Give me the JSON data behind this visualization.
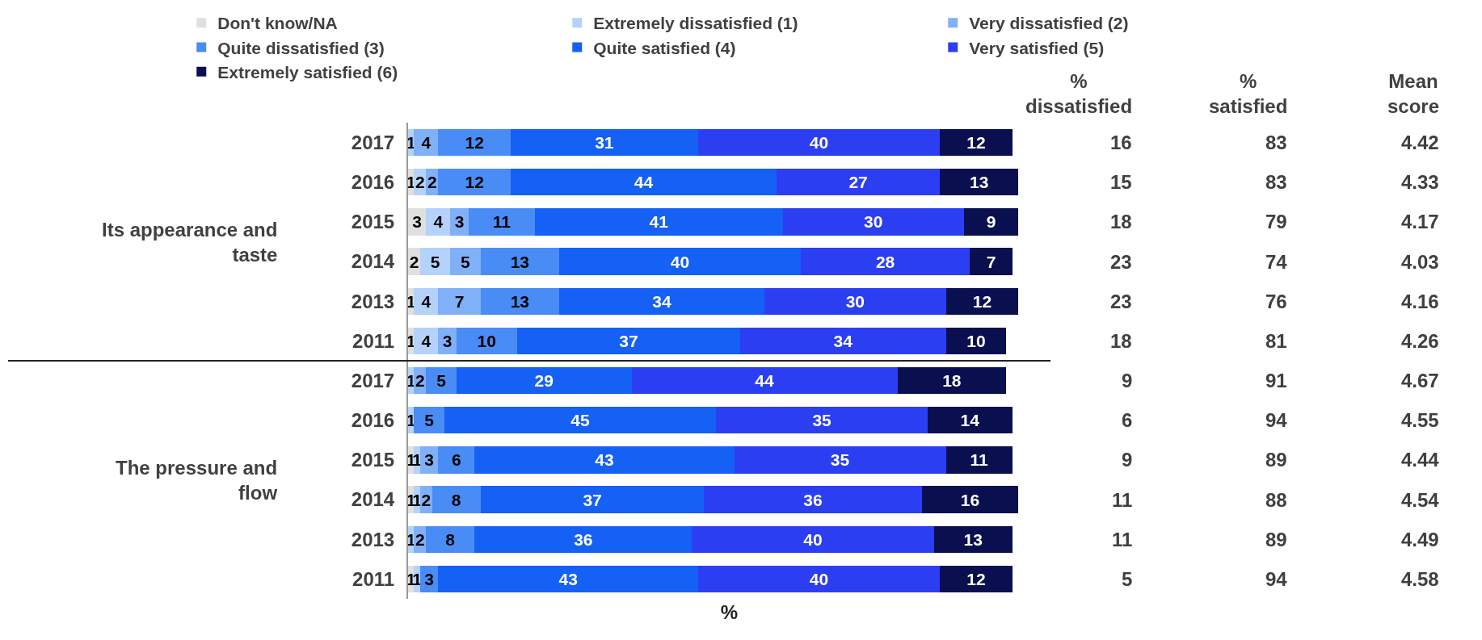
{
  "chart_data": {
    "type": "bar",
    "orientation": "horizontal",
    "stacked": true,
    "data_labels": true,
    "xlabel": "%",
    "legend": "top left",
    "tick_labels": "y",
    "categories": [
      "2017",
      "2016",
      "2015",
      "2014",
      "2013",
      "2011",
      "2017",
      "2016",
      "2015",
      "2014",
      "2013",
      "2011"
    ],
    "series": [
      {
        "name": "Don't know/NA",
        "color": "#e0e0e0",
        "values": [
          null,
          1,
          3,
          2,
          1,
          1,
          null,
          null,
          1,
          1,
          null,
          1
        ]
      },
      {
        "name": "Extremely dissatisfied (1)",
        "color": "#b4d2fa",
        "values": [
          1,
          2,
          4,
          5,
          4,
          4,
          1,
          1,
          1,
          1,
          1,
          1
        ]
      },
      {
        "name": "Very dissatisfied (2)",
        "color": "#80b0f8",
        "values": [
          4,
          2,
          3,
          5,
          7,
          3,
          2,
          null,
          3,
          2,
          2,
          null
        ]
      },
      {
        "name": "Quite dissatisfied (3)",
        "color": "#4a8cf5",
        "values": [
          12,
          12,
          11,
          13,
          13,
          10,
          5,
          5,
          6,
          8,
          8,
          3
        ]
      },
      {
        "name": "Quite satisfied (4)",
        "color": "#1560f5",
        "values": [
          31,
          44,
          41,
          40,
          34,
          37,
          29,
          45,
          43,
          37,
          36,
          43
        ]
      },
      {
        "name": "Very satisfied (5)",
        "color": "#2c3ef2",
        "values": [
          40,
          27,
          30,
          28,
          30,
          34,
          44,
          35,
          35,
          36,
          40,
          40
        ]
      },
      {
        "name": "Extremely satisfied (6)",
        "color": "#0a0f50",
        "values": [
          12,
          13,
          9,
          7,
          12,
          10,
          18,
          14,
          11,
          16,
          13,
          12
        ]
      }
    ],
    "annotations": [
      "Its appearance and taste",
      "The pressure and flow",
      "% dissatisfied",
      "16",
      "15",
      "18",
      "23",
      "23",
      "18",
      "9",
      "6",
      "9",
      "11",
      "11",
      "5",
      "% satisfied",
      "83",
      "83",
      "79",
      "74",
      "76",
      "81",
      "91",
      "94",
      "89",
      "88",
      "89",
      "94",
      "Mean score",
      "4.42",
      "4.33",
      "4.17",
      "4.03",
      "4.16",
      "4.26",
      "4.67",
      "4.55",
      "4.44",
      "4.54",
      "4.49",
      "4.58"
    ]
  }
}
